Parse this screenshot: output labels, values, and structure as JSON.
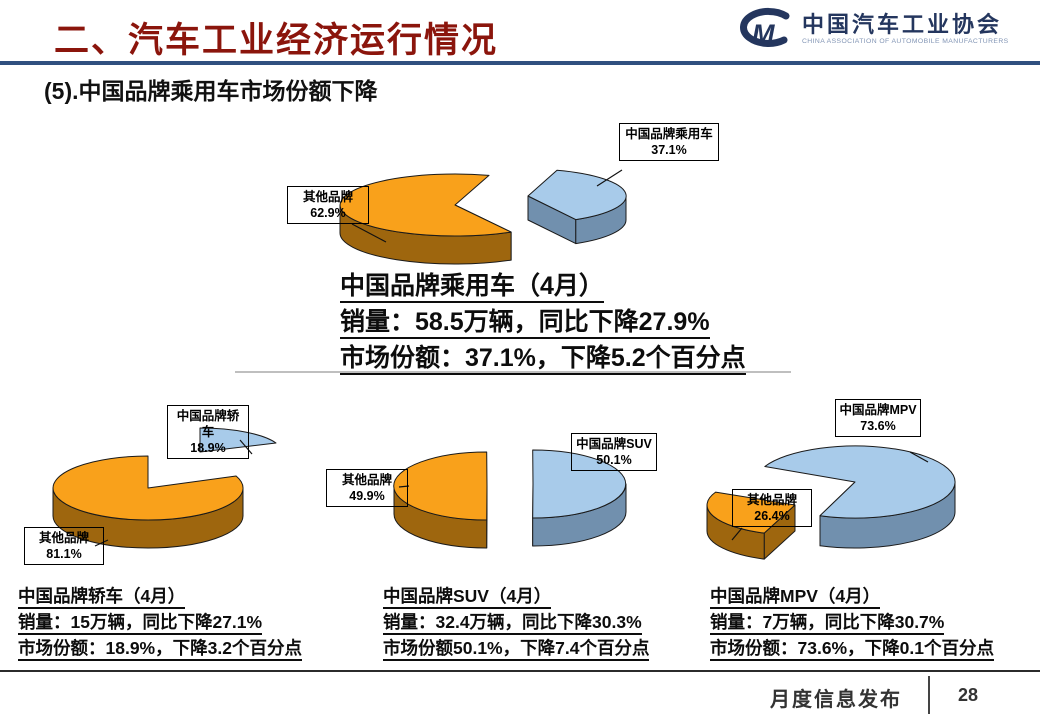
{
  "slide": {
    "header": {
      "title": "二、汽车工业经济运行情况"
    },
    "logo": {
      "mark": "CM",
      "name_cn": "中国汽车工业协会",
      "name_en": "CHINA ASSOCIATION OF AUTOMOBILE MANUFACTURERS"
    },
    "subtitle": "(5).中国品牌乘用车市场份额下降",
    "summary": {
      "title": "中国品牌乘用车（4月）",
      "line1": "销量：58.5万辆，同比下降27.9%",
      "line2": "市场份额：37.1%，下降5.2个百分点"
    },
    "stats": [
      {
        "title": "中国品牌轿车（4月）",
        "line1": "销量：15万辆，同比下降27.1%",
        "line2": "市场份额：18.9%，下降3.2个百分点"
      },
      {
        "title": "中国品牌SUV（4月）",
        "line1": "销量：32.4万辆，同比下降30.3%",
        "line2": "市场份额50.1%，下降7.4个百分点"
      },
      {
        "title": "中国品牌MPV（4月）",
        "line1": "销量：7万辆，同比下降30.7%",
        "line2": "市场份额：73.6%，下降0.1个百分点"
      }
    ],
    "footer": {
      "label": "月度信息发布",
      "page": "28"
    }
  },
  "colors": {
    "china_top": "#A8CBEA",
    "china_side": "#7190AE",
    "other_top": "#F9A11B",
    "other_side": "#9E660E",
    "outline": "#1a1a1a",
    "header_rule": "#30507F",
    "title_red": "#8B150C"
  },
  "chart_data": [
    {
      "type": "pie",
      "title": "中国品牌乘用车（4月）",
      "style": "3d-exploded",
      "legend_position": "callout-boxes",
      "slices": [
        {
          "label": "中国品牌乘用车",
          "value": 37.1,
          "pct": "37.1%"
        },
        {
          "label": "其他品牌",
          "value": 62.9,
          "pct": "62.9%"
        }
      ]
    },
    {
      "type": "pie",
      "title": "中国品牌轿车（4月）",
      "style": "3d-exploded",
      "legend_position": "callout-boxes",
      "slices": [
        {
          "label": "中国品牌轿车",
          "value": 18.9,
          "pct": "18.9%"
        },
        {
          "label": "其他品牌",
          "value": 81.1,
          "pct": "81.1%"
        }
      ]
    },
    {
      "type": "pie",
      "title": "中国品牌SUV（4月）",
      "style": "3d-exploded",
      "legend_position": "callout-boxes",
      "slices": [
        {
          "label": "中国品牌SUV",
          "value": 50.1,
          "pct": "50.1%"
        },
        {
          "label": "其他品牌",
          "value": 49.9,
          "pct": "49.9%"
        }
      ]
    },
    {
      "type": "pie",
      "title": "中国品牌MPV（4月）",
      "style": "3d-exploded",
      "legend_position": "callout-boxes",
      "slices": [
        {
          "label": "中国品牌MPV",
          "value": 73.6,
          "pct": "73.6%"
        },
        {
          "label": "其他品牌",
          "value": 26.4,
          "pct": "26.4%"
        }
      ]
    }
  ]
}
